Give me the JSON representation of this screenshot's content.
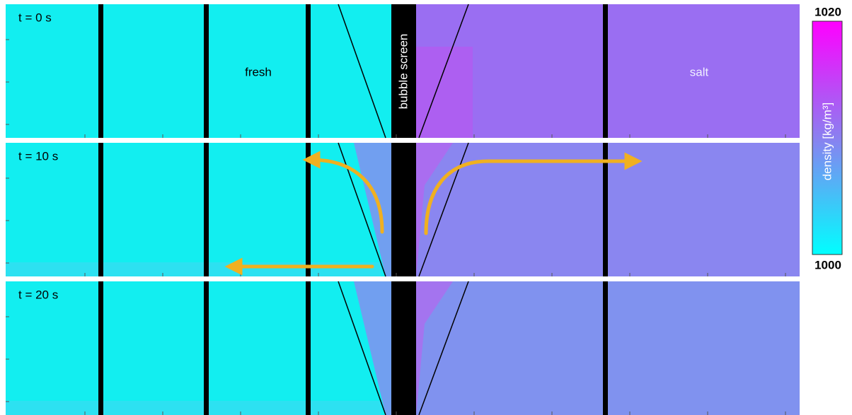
{
  "panels": [
    {
      "label": "t = 0 s"
    },
    {
      "label": "t = 10 s"
    },
    {
      "label": "t = 20 s"
    }
  ],
  "annotations": {
    "fresh": "fresh",
    "salt": "salt",
    "screen": "bubble screen"
  },
  "colorbar": {
    "label": "density [kg/m³]",
    "max_label": "1020",
    "min_label": "1000"
  }
}
